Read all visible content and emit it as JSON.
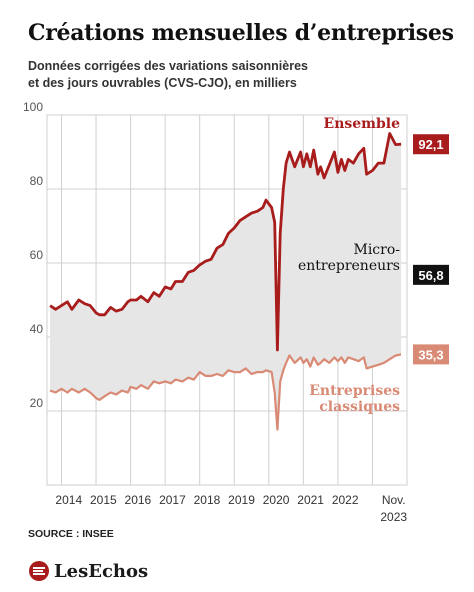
{
  "title": "Créations mensuelles d’entreprises",
  "subtitle_line1": "Données corrigées des variations saisonnières",
  "subtitle_line2": "et des jours ouvrables (CVS-CJO), en milliers",
  "source": "SOURCE : INSEE",
  "logo": "LesEchos",
  "colors": {
    "ensemble": "#a81c1c",
    "classiques": "#d98a75",
    "micro_box": "#111111",
    "fill": "#e6e6e6"
  },
  "chart_data": {
    "type": "line",
    "ylim": [
      0,
      100
    ],
    "yticks": [
      "20",
      "40",
      "60",
      "80",
      "100"
    ],
    "xlim": [
      2013.58,
      2024.0
    ],
    "xticks": [
      "2014",
      "2015",
      "2016",
      "2017",
      "2018",
      "2019",
      "2020",
      "2021",
      "2022"
    ],
    "xtick_last_line1": "Nov.",
    "xtick_last_line2": "2023",
    "series": [
      {
        "name": "Ensemble",
        "end_label": "92,1",
        "points": [
          [
            2013.67,
            48.5
          ],
          [
            2013.83,
            47.5
          ],
          [
            2014.0,
            48.5
          ],
          [
            2014.17,
            49.5
          ],
          [
            2014.3,
            47.5
          ],
          [
            2014.5,
            50.0
          ],
          [
            2014.67,
            49.0
          ],
          [
            2014.83,
            48.5
          ],
          [
            2015.0,
            46.5
          ],
          [
            2015.1,
            46.0
          ],
          [
            2015.25,
            46.0
          ],
          [
            2015.42,
            48.0
          ],
          [
            2015.58,
            47.0
          ],
          [
            2015.75,
            47.5
          ],
          [
            2015.92,
            49.5
          ],
          [
            2016.0,
            50.0
          ],
          [
            2016.17,
            50.0
          ],
          [
            2016.3,
            51.0
          ],
          [
            2016.5,
            49.5
          ],
          [
            2016.67,
            52.0
          ],
          [
            2016.83,
            51.0
          ],
          [
            2017.0,
            53.5
          ],
          [
            2017.17,
            53.0
          ],
          [
            2017.3,
            55.0
          ],
          [
            2017.5,
            55.0
          ],
          [
            2017.67,
            57.5
          ],
          [
            2017.83,
            58.0
          ],
          [
            2018.0,
            59.5
          ],
          [
            2018.17,
            60.5
          ],
          [
            2018.33,
            61.0
          ],
          [
            2018.5,
            64.0
          ],
          [
            2018.67,
            65.0
          ],
          [
            2018.83,
            68.0
          ],
          [
            2019.0,
            69.5
          ],
          [
            2019.17,
            71.5
          ],
          [
            2019.33,
            72.5
          ],
          [
            2019.5,
            73.5
          ],
          [
            2019.67,
            74.0
          ],
          [
            2019.83,
            75.0
          ],
          [
            2019.92,
            77.0
          ],
          [
            2020.08,
            75.0
          ],
          [
            2020.17,
            71.0
          ],
          [
            2020.25,
            36.5
          ],
          [
            2020.33,
            68.0
          ],
          [
            2020.42,
            80.0
          ],
          [
            2020.5,
            87.0
          ],
          [
            2020.6,
            90.0
          ],
          [
            2020.75,
            86.0
          ],
          [
            2020.92,
            90.0
          ],
          [
            2021.0,
            86.0
          ],
          [
            2021.1,
            89.5
          ],
          [
            2021.2,
            86.0
          ],
          [
            2021.3,
            90.5
          ],
          [
            2021.42,
            84.0
          ],
          [
            2021.5,
            86.0
          ],
          [
            2021.6,
            83.0
          ],
          [
            2021.75,
            86.5
          ],
          [
            2021.9,
            90.0
          ],
          [
            2022.0,
            84.5
          ],
          [
            2022.1,
            88.0
          ],
          [
            2022.2,
            85.0
          ],
          [
            2022.3,
            88.0
          ],
          [
            2022.45,
            87.0
          ],
          [
            2022.6,
            89.5
          ],
          [
            2022.75,
            91.0
          ],
          [
            2022.83,
            84.0
          ],
          [
            2023.0,
            85.0
          ],
          [
            2023.17,
            87.0
          ],
          [
            2023.33,
            87.0
          ],
          [
            2023.5,
            95.0
          ],
          [
            2023.67,
            92.0
          ],
          [
            2023.83,
            92.1
          ]
        ]
      },
      {
        "name": "Micro-entrepreneurs",
        "end_label": "56,8",
        "points": []
      },
      {
        "name": "Entreprises classiques",
        "end_label": "35,3",
        "points": [
          [
            2013.67,
            25.5
          ],
          [
            2013.83,
            25.0
          ],
          [
            2014.0,
            26.0
          ],
          [
            2014.17,
            25.0
          ],
          [
            2014.3,
            26.0
          ],
          [
            2014.5,
            25.0
          ],
          [
            2014.67,
            26.0
          ],
          [
            2014.83,
            25.0
          ],
          [
            2015.0,
            23.5
          ],
          [
            2015.1,
            23.0
          ],
          [
            2015.25,
            24.0
          ],
          [
            2015.42,
            25.0
          ],
          [
            2015.58,
            24.5
          ],
          [
            2015.75,
            25.5
          ],
          [
            2015.92,
            25.0
          ],
          [
            2016.0,
            26.5
          ],
          [
            2016.17,
            26.0
          ],
          [
            2016.3,
            27.0
          ],
          [
            2016.5,
            26.0
          ],
          [
            2016.67,
            28.0
          ],
          [
            2016.83,
            27.5
          ],
          [
            2017.0,
            28.0
          ],
          [
            2017.17,
            27.5
          ],
          [
            2017.3,
            28.5
          ],
          [
            2017.5,
            28.0
          ],
          [
            2017.67,
            29.0
          ],
          [
            2017.83,
            28.5
          ],
          [
            2018.0,
            30.5
          ],
          [
            2018.17,
            29.5
          ],
          [
            2018.33,
            29.5
          ],
          [
            2018.5,
            30.0
          ],
          [
            2018.67,
            29.5
          ],
          [
            2018.83,
            31.0
          ],
          [
            2019.0,
            30.5
          ],
          [
            2019.17,
            30.5
          ],
          [
            2019.33,
            31.5
          ],
          [
            2019.5,
            30.0
          ],
          [
            2019.67,
            30.5
          ],
          [
            2019.83,
            30.5
          ],
          [
            2019.92,
            31.0
          ],
          [
            2020.08,
            30.5
          ],
          [
            2020.17,
            25.0
          ],
          [
            2020.25,
            15.0
          ],
          [
            2020.33,
            28.0
          ],
          [
            2020.42,
            31.0
          ],
          [
            2020.5,
            33.0
          ],
          [
            2020.6,
            35.0
          ],
          [
            2020.75,
            33.0
          ],
          [
            2020.92,
            34.5
          ],
          [
            2021.0,
            33.0
          ],
          [
            2021.1,
            34.0
          ],
          [
            2021.2,
            32.0
          ],
          [
            2021.3,
            34.5
          ],
          [
            2021.42,
            32.5
          ],
          [
            2021.5,
            33.0
          ],
          [
            2021.6,
            34.0
          ],
          [
            2021.75,
            33.0
          ],
          [
            2021.9,
            34.5
          ],
          [
            2022.0,
            33.5
          ],
          [
            2022.1,
            34.5
          ],
          [
            2022.2,
            33.0
          ],
          [
            2022.3,
            34.5
          ],
          [
            2022.45,
            34.0
          ],
          [
            2022.6,
            33.5
          ],
          [
            2022.75,
            34.5
          ],
          [
            2022.83,
            31.5
          ],
          [
            2023.0,
            32.0
          ],
          [
            2023.17,
            32.5
          ],
          [
            2023.33,
            33.0
          ],
          [
            2023.5,
            34.0
          ],
          [
            2023.67,
            35.0
          ],
          [
            2023.83,
            35.3
          ]
        ]
      }
    ],
    "labels": {
      "ensemble": "Ensemble",
      "micro_line1": "Micro-",
      "micro_line2": "entrepreneurs",
      "classiques_line1": "Entreprises",
      "classiques_line2": "classiques"
    }
  }
}
